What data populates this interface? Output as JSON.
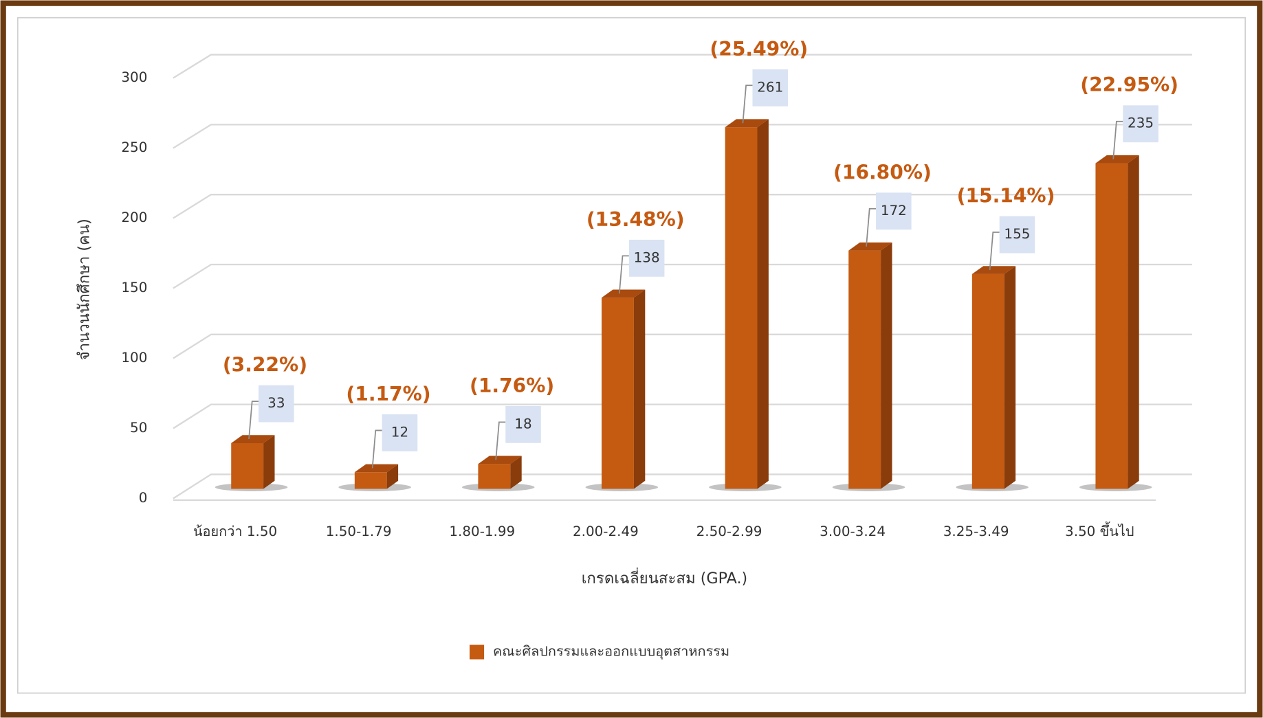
{
  "chart_data": {
    "type": "bar3d",
    "y_label": "จำนวนนักศึกษา (คน)",
    "x_label": "เกรดเฉลี่ยนสะสม (GPA.)",
    "categories": [
      "น้อยกว่า 1.50",
      "1.50-1.79",
      "1.80-1.99",
      "2.00-2.49",
      "2.50-2.99",
      "3.00-3.24",
      "3.25-3.49",
      "3.50 ขึ้นไป"
    ],
    "series": [
      {
        "name": "คณะศิลปกรรมและออกแบบอุตสาหกรรม",
        "color": "#c55a11",
        "values": [
          33,
          12,
          18,
          138,
          261,
          172,
          155,
          235
        ]
      }
    ],
    "annotations": [
      "(3.22%)",
      "(1.17%)",
      "(1.76%)",
      "(13.48%)",
      "(25.49%)",
      "(16.80%)",
      "(15.14%)",
      "(22.95%)"
    ],
    "ylim": [
      0,
      300
    ],
    "yticks": [
      0,
      50,
      100,
      150,
      200,
      250,
      300
    ],
    "grid": true,
    "legend": "bottom"
  }
}
